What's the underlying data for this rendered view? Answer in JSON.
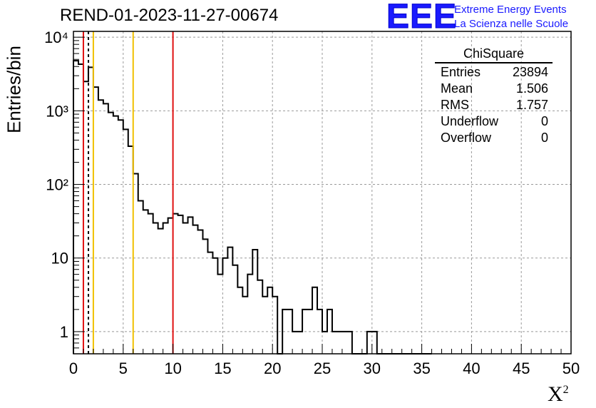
{
  "title": "REND-01-2023-11-27-00674",
  "logo": {
    "mark": "EEE",
    "line1": "Extreme Energy Events",
    "line2": "La Scienza nelle Scuole",
    "color": "#1a1aff"
  },
  "stats": {
    "name": "ChiSquare",
    "rows": [
      {
        "label": "Entries",
        "value": "23894"
      },
      {
        "label": "Mean",
        "value": "1.506"
      },
      {
        "label": "RMS",
        "value": "1.757"
      },
      {
        "label": "Underflow",
        "value": "0"
      },
      {
        "label": "Overflow",
        "value": "0"
      }
    ]
  },
  "chart_data": {
    "type": "bar",
    "title": "REND-01-2023-11-27-00674",
    "xlabel": "X²",
    "ylabel": "Entries/bin",
    "xlim": [
      0,
      50
    ],
    "ylim": [
      0.5,
      12000
    ],
    "y_scale": "log",
    "grid": true,
    "bin_width": 0.5,
    "x_ticks": [
      0,
      5,
      10,
      15,
      20,
      25,
      30,
      35,
      40,
      45,
      50
    ],
    "x_tick_labels": [
      "0",
      "5",
      "10",
      "15",
      "20",
      "25",
      "30",
      "35",
      "40",
      "45",
      "50"
    ],
    "y_ticks": [
      1,
      10,
      100,
      1000,
      10000
    ],
    "y_tick_labels": [
      "1",
      "10",
      "10²",
      "10³",
      "10⁴"
    ],
    "bin_edges_start": 0,
    "values": [
      4800,
      4300,
      2500,
      3900,
      2100,
      1400,
      1250,
      950,
      850,
      750,
      560,
      330,
      140,
      60,
      45,
      40,
      30,
      25,
      30,
      35,
      40,
      38,
      30,
      36,
      28,
      24,
      18,
      12,
      10,
      6,
      10,
      14,
      8,
      4,
      3,
      6,
      13,
      5,
      3,
      4,
      3,
      0,
      2,
      2,
      1,
      1,
      2,
      2,
      4,
      2,
      1,
      2,
      1,
      1,
      1,
      1,
      0,
      0,
      0,
      1,
      1,
      0,
      0,
      0,
      0,
      0,
      0,
      0,
      0,
      0,
      0,
      0
    ],
    "vlines": [
      {
        "x": 1.0,
        "color": "#e01010",
        "style": "solid"
      },
      {
        "x": 1.506,
        "color": "#000000",
        "style": "dashed"
      },
      {
        "x": 2.0,
        "color": "#f0c000",
        "style": "solid"
      },
      {
        "x": 6.0,
        "color": "#f0c000",
        "style": "solid"
      },
      {
        "x": 10.0,
        "color": "#e01010",
        "style": "solid"
      }
    ]
  }
}
